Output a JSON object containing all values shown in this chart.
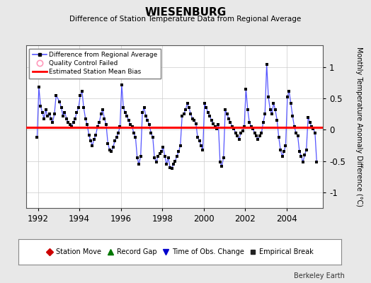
{
  "title": "WIESENBURG",
  "subtitle": "Difference of Station Temperature Data from Regional Average",
  "ylabel": "Monthly Temperature Anomaly Difference (°C)",
  "xlabel_ticks": [
    1992,
    1994,
    1996,
    1998,
    2000,
    2002,
    2004
  ],
  "yticks": [
    -1,
    -0.5,
    0,
    0.5,
    1
  ],
  "xlim": [
    1991.42,
    2005.75
  ],
  "ylim": [
    -1.25,
    1.35
  ],
  "bias_value": 0.04,
  "bg_color": "#e8e8e8",
  "plot_bg_color": "#ffffff",
  "line_color": "#5555ff",
  "marker_color": "#000000",
  "bias_color": "#ff0000",
  "credit": "Berkeley Earth",
  "legend1_items": [
    {
      "label": "Difference from Regional Average"
    },
    {
      "label": "Quality Control Failed"
    },
    {
      "label": "Estimated Station Mean Bias"
    }
  ],
  "legend2_items": [
    {
      "label": "Station Move"
    },
    {
      "label": "Record Gap"
    },
    {
      "label": "Time of Obs. Change"
    },
    {
      "label": "Empirical Break"
    }
  ],
  "time_series": [
    1991.958,
    1992.042,
    1992.125,
    1992.208,
    1992.292,
    1992.375,
    1992.458,
    1992.542,
    1992.625,
    1992.708,
    1992.792,
    1992.875,
    1993.042,
    1993.125,
    1993.208,
    1993.292,
    1993.375,
    1993.458,
    1993.542,
    1993.625,
    1993.708,
    1993.792,
    1993.875,
    1993.958,
    1994.042,
    1994.125,
    1994.208,
    1994.292,
    1994.375,
    1994.458,
    1994.542,
    1994.625,
    1994.708,
    1994.792,
    1994.875,
    1994.958,
    1995.042,
    1995.125,
    1995.208,
    1995.292,
    1995.375,
    1995.458,
    1995.542,
    1995.625,
    1995.708,
    1995.792,
    1995.875,
    1995.958,
    1996.042,
    1996.125,
    1996.208,
    1996.292,
    1996.375,
    1996.458,
    1996.542,
    1996.625,
    1996.708,
    1996.792,
    1996.875,
    1996.958,
    1997.042,
    1997.125,
    1997.208,
    1997.292,
    1997.375,
    1997.458,
    1997.542,
    1997.625,
    1997.708,
    1997.792,
    1997.875,
    1997.958,
    1998.042,
    1998.125,
    1998.208,
    1998.292,
    1998.375,
    1998.458,
    1998.542,
    1998.625,
    1998.708,
    1998.792,
    1998.875,
    1998.958,
    1999.042,
    1999.125,
    1999.208,
    1999.292,
    1999.375,
    1999.458,
    1999.542,
    1999.625,
    1999.708,
    1999.792,
    1999.875,
    1999.958,
    2000.042,
    2000.125,
    2000.208,
    2000.292,
    2000.375,
    2000.458,
    2000.542,
    2000.625,
    2000.708,
    2000.792,
    2000.875,
    2000.958,
    2001.042,
    2001.125,
    2001.208,
    2001.292,
    2001.375,
    2001.458,
    2001.542,
    2001.625,
    2001.708,
    2001.792,
    2001.875,
    2001.958,
    2002.042,
    2002.125,
    2002.208,
    2002.292,
    2002.375,
    2002.458,
    2002.542,
    2002.625,
    2002.708,
    2002.792,
    2002.875,
    2002.958,
    2003.042,
    2003.125,
    2003.208,
    2003.292,
    2003.375,
    2003.458,
    2003.542,
    2003.625,
    2003.708,
    2003.792,
    2003.875,
    2003.958,
    2004.042,
    2004.125,
    2004.208,
    2004.292,
    2004.375,
    2004.458,
    2004.542,
    2004.625,
    2004.708,
    2004.792,
    2004.875,
    2004.958,
    2005.042,
    2005.125,
    2005.208,
    2005.292,
    2005.375,
    2005.458
  ],
  "values": [
    -0.12,
    0.68,
    0.38,
    0.28,
    0.18,
    0.32,
    0.22,
    0.25,
    0.18,
    0.12,
    0.25,
    0.55,
    0.45,
    0.35,
    0.22,
    0.28,
    0.18,
    0.12,
    0.08,
    0.05,
    0.12,
    0.18,
    0.28,
    0.35,
    0.55,
    0.62,
    0.35,
    0.18,
    0.08,
    -0.08,
    -0.18,
    -0.25,
    -0.15,
    -0.08,
    0.05,
    0.12,
    0.25,
    0.32,
    0.18,
    0.08,
    -0.22,
    -0.32,
    -0.35,
    -0.28,
    -0.18,
    -0.12,
    -0.05,
    0.05,
    0.72,
    0.35,
    0.28,
    0.22,
    0.15,
    0.08,
    0.05,
    -0.05,
    -0.12,
    -0.45,
    -0.55,
    -0.42,
    0.28,
    0.35,
    0.22,
    0.15,
    0.08,
    -0.05,
    -0.12,
    -0.45,
    -0.52,
    -0.42,
    -0.38,
    -0.35,
    -0.28,
    -0.42,
    -0.55,
    -0.45,
    -0.6,
    -0.62,
    -0.55,
    -0.5,
    -0.42,
    -0.35,
    -0.25,
    0.22,
    0.25,
    0.32,
    0.42,
    0.35,
    0.25,
    0.18,
    0.15,
    0.1,
    -0.12,
    -0.18,
    -0.25,
    -0.32,
    0.42,
    0.35,
    0.28,
    0.22,
    0.15,
    0.1,
    0.05,
    0.02,
    0.08,
    -0.52,
    -0.58,
    -0.45,
    0.32,
    0.25,
    0.18,
    0.12,
    0.05,
    0.02,
    -0.05,
    -0.1,
    -0.15,
    -0.05,
    -0.02,
    0.05,
    0.65,
    0.32,
    0.12,
    0.05,
    0.02,
    -0.05,
    -0.1,
    -0.15,
    -0.1,
    -0.05,
    0.12,
    0.25,
    1.05,
    0.52,
    0.32,
    0.25,
    0.42,
    0.32,
    0.15,
    -0.12,
    -0.32,
    -0.42,
    -0.35,
    -0.25,
    0.52,
    0.62,
    0.42,
    0.22,
    0.05,
    -0.05,
    -0.1,
    -0.35,
    -0.42,
    -0.52,
    -0.4,
    -0.32,
    0.2,
    0.12,
    0.05,
    0.02,
    -0.05,
    -0.52
  ]
}
